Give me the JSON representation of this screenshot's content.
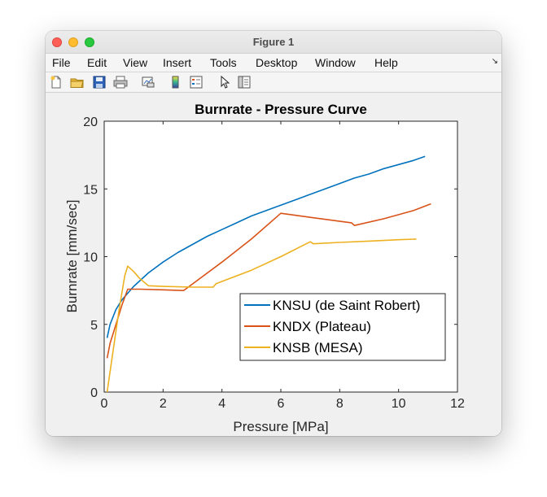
{
  "window": {
    "title": "Figure 1"
  },
  "menu": [
    "File",
    "Edit",
    "View",
    "Insert",
    "Tools",
    "Desktop",
    "Window",
    "Help"
  ],
  "menu_dock_glyph": "↘",
  "toolbar_icons": [
    "new-figure-icon",
    "open-file-icon",
    "save-icon",
    "print-icon",
    "link-plot-icon",
    "insert-colorbar-icon",
    "insert-legend-icon",
    "edit-plot-icon",
    "property-inspector-icon"
  ],
  "chart_data": {
    "type": "line",
    "title": "Burnrate - Pressure Curve",
    "xlabel": "Pressure [MPa]",
    "ylabel": "Burnrate [mm/sec]",
    "xlim": [
      0,
      12
    ],
    "ylim": [
      0,
      20
    ],
    "xticks": [
      0,
      2,
      4,
      6,
      8,
      10,
      12
    ],
    "yticks": [
      0,
      5,
      10,
      15,
      20
    ],
    "grid": false,
    "legend_position": "bottom-right",
    "series": [
      {
        "name": "KNSU (de Saint Robert)",
        "color": "#0072bd",
        "x": [
          0.1,
          0.2,
          0.4,
          0.6,
          0.8,
          1,
          1.5,
          2,
          2.5,
          3,
          3.5,
          4,
          4.5,
          5,
          5.5,
          6,
          6.5,
          7,
          7.5,
          8,
          8.5,
          9,
          9.5,
          10,
          10.5,
          10.9
        ],
        "y": [
          4.0,
          5.0,
          6.1,
          6.8,
          7.3,
          7.8,
          8.8,
          9.6,
          10.3,
          10.9,
          11.5,
          12.0,
          12.5,
          13.0,
          13.4,
          13.8,
          14.2,
          14.6,
          15.0,
          15.4,
          15.8,
          16.1,
          16.5,
          16.8,
          17.1,
          17.4
        ]
      },
      {
        "name": "KNDX (Plateau)",
        "color": "#d95319",
        "x": [
          0.1,
          0.2,
          0.4,
          0.6,
          0.8,
          1.2,
          2.0,
          2.6,
          2.7,
          4.0,
          5.0,
          6.0,
          7.0,
          8.4,
          8.5,
          9.5,
          10.5,
          11.1
        ],
        "y": [
          2.5,
          3.6,
          5.0,
          6.4,
          7.6,
          7.6,
          7.55,
          7.5,
          7.5,
          9.6,
          11.3,
          13.2,
          12.9,
          12.5,
          12.3,
          12.8,
          13.4,
          13.9
        ]
      },
      {
        "name": "KNSB (MESA)",
        "color": "#edb120",
        "x": [
          0.1,
          0.3,
          0.5,
          0.7,
          0.8,
          1.0,
          1.2,
          1.5,
          2.0,
          3.0,
          3.7,
          3.8,
          5.0,
          6.0,
          7.0,
          7.1,
          8.0,
          9.0,
          10.0,
          10.6
        ],
        "y": [
          0.0,
          3.0,
          6.0,
          8.6,
          9.3,
          8.9,
          8.4,
          7.85,
          7.8,
          7.75,
          7.75,
          8.0,
          9.0,
          10.0,
          11.1,
          10.95,
          11.05,
          11.15,
          11.25,
          11.3
        ]
      }
    ]
  }
}
